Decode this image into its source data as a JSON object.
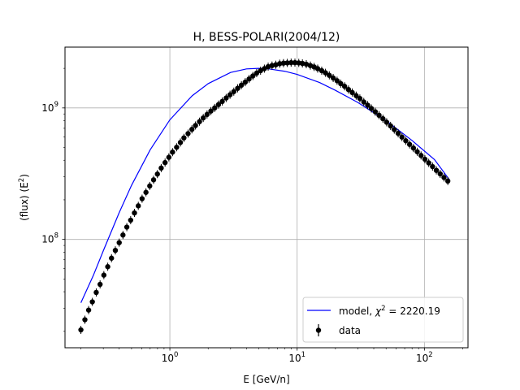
{
  "chart_data": {
    "type": "scatter",
    "title": "H, BESS-POLARI(2004/12)",
    "xlabel": "E [GeV/n]",
    "ylabel_text": "(flux)  (E",
    "ylabel_sup": "2",
    "ylabel_close": ")",
    "xscale": "log",
    "yscale": "log",
    "xlim": [
      0.15,
      220
    ],
    "ylim": [
      15000000,
      2900000000
    ],
    "xticks": [
      {
        "value": 1,
        "base": "10",
        "exp": "0"
      },
      {
        "value": 10,
        "base": "10",
        "exp": "1"
      },
      {
        "value": 100,
        "base": "10",
        "exp": "2"
      }
    ],
    "yticks": [
      {
        "value": 100000000,
        "base": "10",
        "exp": "8"
      },
      {
        "value": 1000000000,
        "base": "10",
        "exp": "9"
      }
    ],
    "grid": true,
    "legend_position": "lower-right",
    "legend": {
      "model_label": "model, ",
      "model_chi": "χ",
      "model_sup": "2",
      "model_value": " = 2220.19",
      "data_label": "data"
    },
    "series": [
      {
        "name": "model",
        "kind": "line",
        "color": "#0000ff",
        "x": [
          0.2,
          0.25,
          0.3,
          0.4,
          0.5,
          0.7,
          1.0,
          1.5,
          2.0,
          3.0,
          4.0,
          5.0,
          6.0,
          8.0,
          10.0,
          15.0,
          20.0,
          30.0,
          50.0,
          80.0,
          120.0,
          157.0
        ],
        "y": [
          33000000,
          53000000,
          82000000,
          160000000,
          258000000,
          480000000,
          812000000,
          1240000000,
          1530000000,
          1860000000,
          1980000000,
          2000000000,
          1980000000,
          1900000000,
          1800000000,
          1560000000,
          1360000000,
          1100000000,
          800000000,
          565000000,
          405000000,
          285000000
        ]
      },
      {
        "name": "data",
        "kind": "points",
        "color": "#000000",
        "x": [
          0.2,
          0.215,
          0.23,
          0.246,
          0.264,
          0.283,
          0.303,
          0.325,
          0.348,
          0.373,
          0.4,
          0.428,
          0.459,
          0.492,
          0.527,
          0.565,
          0.605,
          0.649,
          0.695,
          0.745,
          0.798,
          0.855,
          0.917,
          0.982,
          1.05,
          1.13,
          1.21,
          1.29,
          1.39,
          1.49,
          1.59,
          1.71,
          1.83,
          1.96,
          2.1,
          2.25,
          2.41,
          2.58,
          2.77,
          2.97,
          3.18,
          3.41,
          3.65,
          3.91,
          4.19,
          4.49,
          4.81,
          5.16,
          5.53,
          5.92,
          6.35,
          6.8,
          7.29,
          7.81,
          8.37,
          8.97,
          9.61,
          10.3,
          11.0,
          11.8,
          12.7,
          13.6,
          14.5,
          15.6,
          16.7,
          17.9,
          19.2,
          20.6,
          22.0,
          23.6,
          25.3,
          27.1,
          29.1,
          31.1,
          33.4,
          35.8,
          38.3,
          41.1,
          44.0,
          47.2,
          50.5,
          54.2,
          58.0,
          62.2,
          66.6,
          71.4,
          76.5,
          82.0,
          87.8,
          94.1,
          100.9,
          108.1,
          115.8,
          124.1,
          133.0,
          142.5,
          152.7
        ],
        "y": [
          20500000,
          24500000,
          29000000,
          33500000,
          39500000,
          45500000,
          53500000,
          62000000,
          72000000,
          82500000,
          94500000,
          108000000,
          124000000,
          140000000,
          159000000,
          180000000,
          204000000,
          228000000,
          255000000,
          284000000,
          314000000,
          349000000,
          384000000,
          421000000,
          461000000,
          502000000,
          546000000,
          592000000,
          638000000,
          687000000,
          735000000,
          786000000,
          839000000,
          892000000,
          946000000,
          1000000000,
          1060000000,
          1120000000,
          1190000000,
          1260000000,
          1330000000,
          1410000000,
          1490000000,
          1570000000,
          1660000000,
          1750000000,
          1840000000,
          1920000000,
          1990000000,
          2060000000,
          2100000000,
          2130000000,
          2170000000,
          2190000000,
          2200000000,
          2210000000,
          2210000000,
          2200000000,
          2180000000,
          2150000000,
          2100000000,
          2050000000,
          1990000000,
          1920000000,
          1850000000,
          1770000000,
          1690000000,
          1610000000,
          1530000000,
          1460000000,
          1380000000,
          1310000000,
          1240000000,
          1180000000,
          1110000000,
          1050000000,
          990000000,
          935000000,
          880000000,
          828000000,
          778000000,
          730000000,
          684000000,
          641000000,
          600000000,
          563000000,
          528000000,
          495000000,
          464000000,
          435000000,
          407000000,
          382000000,
          358000000,
          335000000,
          315000000,
          296000000,
          278000000
        ]
      }
    ]
  }
}
